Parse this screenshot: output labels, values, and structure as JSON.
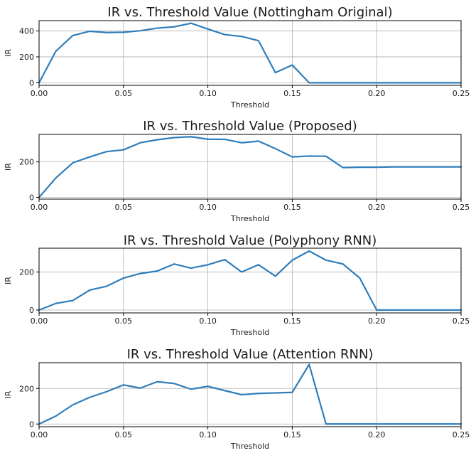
{
  "colors": {
    "line": "#2f7ebc",
    "grid": "#b0b0b0"
  },
  "chart_data": [
    {
      "type": "line",
      "title": "IR vs. Threshold Value (Nottingham Original)",
      "xlabel": "Threshold",
      "ylabel": "IR",
      "xlim": [
        0,
        0.25
      ],
      "ylim": [
        -20,
        480
      ],
      "xticks": [
        0.0,
        0.05,
        0.1,
        0.15,
        0.2,
        0.25
      ],
      "xtick_labels": [
        "0.00",
        "0.05",
        "0.10",
        "0.15",
        "0.20",
        "0.25"
      ],
      "yticks": [
        0,
        200,
        400
      ],
      "ytick_labels": [
        "0",
        "200",
        "400"
      ],
      "grid": true,
      "x": [
        0.0,
        0.01,
        0.02,
        0.03,
        0.04,
        0.05,
        0.06,
        0.07,
        0.08,
        0.09,
        0.1,
        0.11,
        0.12,
        0.13,
        0.14,
        0.15,
        0.16,
        0.17,
        0.18,
        0.19,
        0.2,
        0.21,
        0.22,
        0.23,
        0.24,
        0.25
      ],
      "y": [
        0,
        245,
        365,
        398,
        388,
        390,
        402,
        422,
        432,
        460,
        415,
        372,
        358,
        325,
        78,
        137,
        0,
        0,
        0,
        0,
        0,
        0,
        0,
        0,
        0,
        0
      ]
    },
    {
      "type": "line",
      "title": "IR vs. Threshold Value (Proposed)",
      "xlabel": "Threshold",
      "ylabel": "IR",
      "xlim": [
        0,
        0.25
      ],
      "ylim": [
        -10,
        355
      ],
      "xticks": [
        0.0,
        0.05,
        0.1,
        0.15,
        0.2,
        0.25
      ],
      "xtick_labels": [
        "0.00",
        "0.05",
        "0.10",
        "0.15",
        "0.20",
        "0.25"
      ],
      "yticks": [
        0,
        200
      ],
      "ytick_labels": [
        "0",
        "200"
      ],
      "grid": true,
      "x": [
        0.0,
        0.01,
        0.02,
        0.03,
        0.04,
        0.05,
        0.06,
        0.07,
        0.08,
        0.09,
        0.1,
        0.11,
        0.12,
        0.13,
        0.14,
        0.15,
        0.16,
        0.17,
        0.18,
        0.19,
        0.2,
        0.21,
        0.22,
        0.23,
        0.24,
        0.25
      ],
      "y": [
        0,
        110,
        195,
        228,
        258,
        268,
        308,
        325,
        337,
        342,
        328,
        327,
        308,
        317,
        275,
        228,
        233,
        232,
        168,
        170,
        170,
        172,
        172,
        172,
        172,
        172
      ]
    },
    {
      "type": "line",
      "title": "IR vs. Threshold Value (Polyphony RNN)",
      "xlabel": "Threshold",
      "ylabel": "IR",
      "xlim": [
        0,
        0.25
      ],
      "ylim": [
        -15,
        325
      ],
      "xticks": [
        0.0,
        0.05,
        0.1,
        0.15,
        0.2,
        0.25
      ],
      "xtick_labels": [
        "0.00",
        "0.05",
        "0.10",
        "0.15",
        "0.20",
        "0.25"
      ],
      "yticks": [
        0,
        200
      ],
      "ytick_labels": [
        "0",
        "200"
      ],
      "grid": true,
      "x": [
        0.0,
        0.01,
        0.02,
        0.03,
        0.04,
        0.05,
        0.06,
        0.07,
        0.08,
        0.09,
        0.1,
        0.11,
        0.12,
        0.13,
        0.14,
        0.15,
        0.16,
        0.17,
        0.18,
        0.19,
        0.2,
        0.21,
        0.22,
        0.23,
        0.24,
        0.25
      ],
      "y": [
        0,
        35,
        50,
        105,
        125,
        168,
        192,
        205,
        242,
        220,
        238,
        265,
        200,
        238,
        178,
        262,
        310,
        262,
        242,
        168,
        0,
        0,
        0,
        0,
        0,
        0
      ]
    },
    {
      "type": "line",
      "title": "IR vs. Threshold Value (Attention RNN)",
      "xlabel": "Threshold",
      "ylabel": "IR",
      "xlim": [
        0,
        0.25
      ],
      "ylim": [
        -15,
        345
      ],
      "xticks": [
        0.0,
        0.05,
        0.1,
        0.15,
        0.2,
        0.25
      ],
      "xtick_labels": [
        "0.00",
        "0.05",
        "0.10",
        "0.15",
        "0.20",
        "0.25"
      ],
      "yticks": [
        0,
        200
      ],
      "ytick_labels": [
        "0",
        "200"
      ],
      "grid": true,
      "x": [
        0.0,
        0.01,
        0.02,
        0.03,
        0.04,
        0.05,
        0.06,
        0.07,
        0.08,
        0.09,
        0.1,
        0.11,
        0.12,
        0.13,
        0.14,
        0.15,
        0.16,
        0.17,
        0.18,
        0.19,
        0.2,
        0.21,
        0.22,
        0.23,
        0.24,
        0.25
      ],
      "y": [
        0,
        45,
        108,
        150,
        182,
        220,
        202,
        238,
        228,
        196,
        212,
        188,
        165,
        172,
        175,
        178,
        335,
        0,
        0,
        0,
        0,
        0,
        0,
        0,
        0,
        0
      ]
    }
  ]
}
